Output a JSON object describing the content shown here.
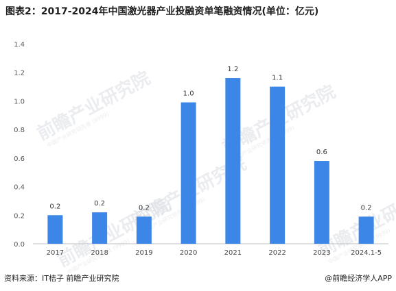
{
  "title": "图表2：2017-2024年中国激光器产业投融资单笔融资情况(单位：亿元)",
  "source": "资料来源：IT桔子 前瞻产业研究院",
  "brand": "@前瞻经济学人APP",
  "watermark": {
    "text": "前瞻产业研究院",
    "subtext": "中国产业研究领先者 (9999)",
    "color": "#d9dde3"
  },
  "colors": {
    "bar": "#3b86e6",
    "grid": "#d9d9d9",
    "axis": "#bfbfbf"
  },
  "chart_data": {
    "type": "bar",
    "categories": [
      "2017",
      "2018",
      "2019",
      "2020",
      "2021",
      "2022",
      "2023",
      "2024.1-5"
    ],
    "values": [
      0.2,
      0.22,
      0.19,
      0.99,
      1.16,
      1.1,
      0.58,
      0.19
    ],
    "data_labels": [
      "0.2",
      "0.2",
      "0.2",
      "1.0",
      "1.2",
      "1.1",
      "0.6",
      "0.2"
    ],
    "y_ticks": [
      "0.0",
      "0.2",
      "0.4",
      "0.6",
      "0.8",
      "1.0",
      "1.2",
      "1.4"
    ],
    "ylim": [
      0,
      1.4
    ],
    "grid": false,
    "legend": "none"
  }
}
